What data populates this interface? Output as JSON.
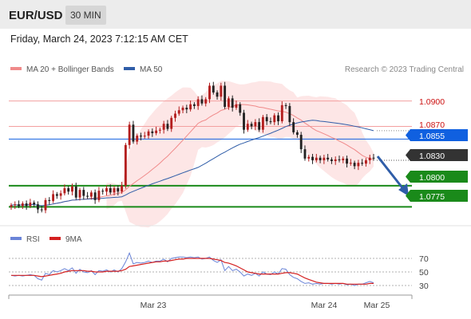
{
  "header": {
    "symbol": "EUR/USD",
    "interval": "30 MIN",
    "datetime": "Friday, March 24, 2023 7:12:15 AM CET"
  },
  "legend": {
    "ma20_label": "MA 20 + Bollinger Bands",
    "ma50_label": "MA 50",
    "credit": "Research © 2023 Trading Central",
    "rsi_label": "RSI",
    "rsi_ma_label": "9MA"
  },
  "colors": {
    "ma20": "#f08a8a",
    "ma50": "#2f5da8",
    "resistance": "#cc1111",
    "support": "#1a8a1a",
    "pivot": "#1060e0",
    "current": "#333333",
    "candle_up": "#b41e1e",
    "candle_down": "#222222",
    "rsi": "#6a84d8",
    "rsi_ma": "#d42020"
  },
  "levels": {
    "r2": "1.0900",
    "r1": "1.0870",
    "pivot": "1.0855",
    "current": "1.0830",
    "s1": "1.0800",
    "s2": "1.0775"
  },
  "rsi_ticks": [
    "70",
    "50",
    "30"
  ],
  "x_axis": [
    "Mar 23",
    "Mar 24",
    "Mar 25"
  ],
  "chart_data": {
    "type": "candlestick",
    "price_range": [
      1.0765,
      1.0925
    ],
    "rsi_range": [
      20,
      80
    ],
    "close": [
      1.0777,
      1.0778,
      1.0776,
      1.0779,
      1.0776,
      1.078,
      1.0778,
      1.0772,
      1.0771,
      1.0783,
      1.0782,
      1.079,
      1.0788,
      1.0791,
      1.0797,
      1.0793,
      1.0799,
      1.0786,
      1.0795,
      1.0788,
      1.0787,
      1.0792,
      1.0783,
      1.0794,
      1.0793,
      1.0797,
      1.0792,
      1.0797,
      1.0793,
      1.08,
      1.0848,
      1.0872,
      1.0852,
      1.0859,
      1.0858,
      1.0859,
      1.0864,
      1.0862,
      1.0865,
      1.0866,
      1.0873,
      1.0867,
      1.088,
      1.0885,
      1.0889,
      1.0892,
      1.089,
      1.0896,
      1.0894,
      1.0902,
      1.0897,
      1.0902,
      1.0918,
      1.091,
      1.0905,
      1.0918,
      1.0893,
      1.0903,
      1.0892,
      1.0896,
      1.0886,
      1.0866,
      1.0873,
      1.087,
      1.0875,
      1.0866,
      1.0881,
      1.0876,
      1.0875,
      1.0883,
      1.0876,
      1.0895,
      1.0894,
      1.0875,
      1.0863,
      1.086,
      1.0843,
      1.0832,
      1.0834,
      1.083,
      1.0833,
      1.083,
      1.0833,
      1.0831,
      1.0829,
      1.0831,
      1.083,
      1.0832,
      1.0826,
      1.0827,
      1.0823,
      1.0827,
      1.0826,
      1.083,
      1.0833,
      1.0832
    ],
    "rsi": [
      45,
      44,
      45,
      44,
      45,
      46,
      45,
      40,
      38,
      48,
      46,
      52,
      50,
      52,
      55,
      52,
      56,
      48,
      54,
      50,
      49,
      52,
      46,
      52,
      51,
      53,
      50,
      53,
      50,
      55,
      65,
      78,
      62,
      64,
      63,
      64,
      66,
      64,
      66,
      66,
      69,
      65,
      70,
      71,
      72,
      72,
      71,
      72,
      71,
      72,
      69,
      70,
      72,
      67,
      64,
      68,
      52,
      58,
      52,
      54,
      50,
      44,
      47,
      45,
      48,
      44,
      50,
      47,
      46,
      50,
      47,
      55,
      54,
      46,
      42,
      40,
      36,
      33,
      34,
      32,
      33,
      32,
      33,
      33,
      32,
      33,
      32,
      33,
      31,
      32,
      30,
      32,
      32,
      34,
      36,
      34
    ],
    "rsi_ma": [
      45,
      45,
      45,
      45,
      45,
      45,
      45,
      44,
      43,
      44,
      45,
      46,
      47,
      48,
      50,
      51,
      52,
      52,
      52,
      52,
      51,
      51,
      50,
      50,
      50,
      51,
      51,
      51,
      51,
      52,
      54,
      58,
      59,
      60,
      61,
      62,
      63,
      64,
      65,
      65,
      66,
      66,
      67,
      68,
      69,
      69,
      70,
      70,
      70,
      70,
      70,
      70,
      70,
      69,
      68,
      67,
      64,
      63,
      61,
      59,
      56,
      53,
      50,
      49,
      48,
      47,
      47,
      47,
      47,
      47,
      47,
      48,
      49,
      49,
      48,
      47,
      44,
      41,
      39,
      37,
      35,
      34,
      33,
      33,
      33,
      33,
      33,
      33,
      32,
      32,
      32,
      32,
      32,
      32,
      33,
      33
    ]
  }
}
